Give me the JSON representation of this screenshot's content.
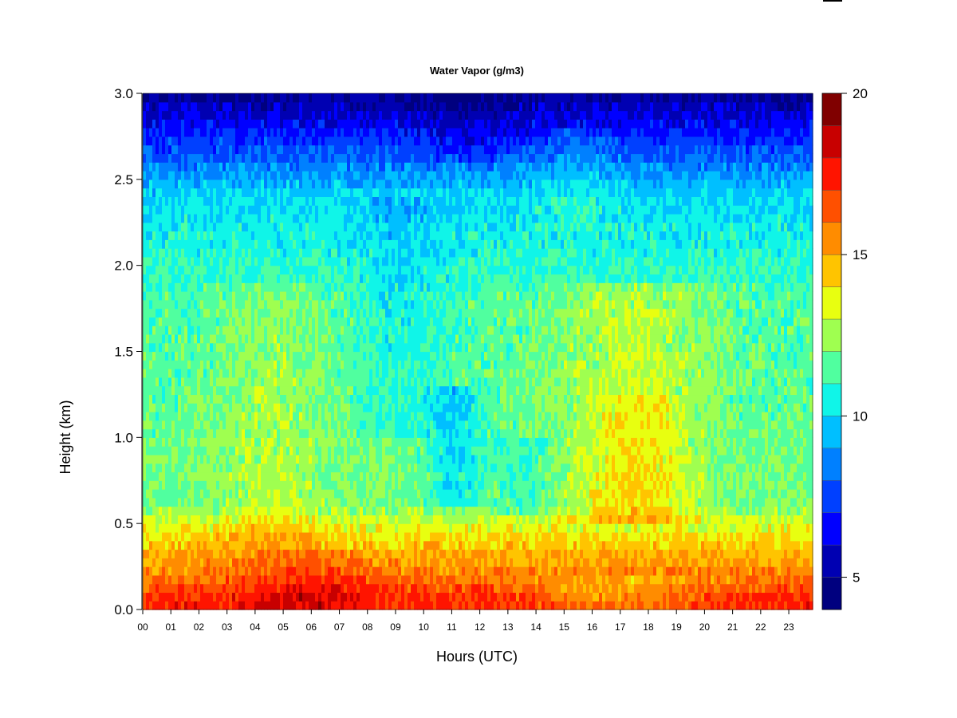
{
  "chart_data": {
    "type": "heatmap",
    "title": "Water Vapor (g/m3)",
    "xlabel": "Hours (UTC)",
    "ylabel": "Height (km)",
    "xlim": [
      0,
      23.85
    ],
    "ylim": [
      0.0,
      3.0
    ],
    "x_ticks": [
      "00",
      "01",
      "02",
      "03",
      "04",
      "05",
      "06",
      "07",
      "08",
      "09",
      "10",
      "11",
      "12",
      "13",
      "14",
      "15",
      "16",
      "17",
      "18",
      "19",
      "20",
      "21",
      "22",
      "23"
    ],
    "y_ticks": [
      "0.0",
      "0.5",
      "1.0",
      "1.5",
      "2.0",
      "2.5",
      "3.0"
    ],
    "colorbar": {
      "min": 4,
      "max": 20,
      "step": 1,
      "tick_values": [
        5,
        10,
        15,
        20
      ],
      "tick_labels": [
        "5",
        "10",
        "15",
        "20"
      ],
      "colors": [
        "#00007f",
        "#0000b2",
        "#0000ff",
        "#0040ff",
        "#0080ff",
        "#00bfff",
        "#10f5e8",
        "#50ff9f",
        "#9fff50",
        "#e8ff10",
        "#ffc400",
        "#ff8c00",
        "#ff5000",
        "#ff1400",
        "#c80000",
        "#800000"
      ]
    },
    "grid": false,
    "value_profile_notes": "Values estimated from colors: ~17 g/m3 near surface, ~14 below 0.5 km, ~11-13 through 0.5-2 km, ~10 at 2-2.4 km, decreasing to ~5 at 3.0 km; moister layer 15-21 UTC at 0.5-1.2 km, drier column 10-12 UTC."
  }
}
